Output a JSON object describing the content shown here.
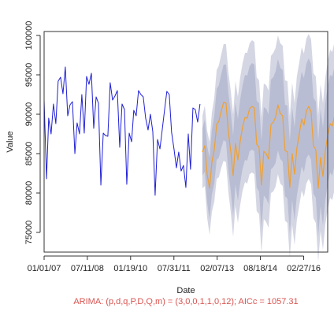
{
  "chart_data": {
    "type": "line",
    "title": "",
    "xlabel": "Date",
    "ylabel": "Value",
    "caption": "ARIMA: (p,d,q,P,D,Q,m) = (3,0,0,1,1,0,12); AICc = 1057.31",
    "x_range": [
      "2007-01-01",
      "2017-01-01"
    ],
    "ylim": [
      72500,
      100500
    ],
    "x_ticks": [
      "01/01/07",
      "07/11/08",
      "01/19/10",
      "07/31/11",
      "02/07/13",
      "08/18/14",
      "02/27/16"
    ],
    "y_ticks": [
      75000,
      80000,
      85000,
      90000,
      95000,
      100000
    ],
    "grid": false,
    "legend": "none",
    "colors": {
      "observed": "#1f1fd6",
      "forecast": "#f0a030",
      "band_outer": "#d4d6e3",
      "band_inner": "#b9bdd3",
      "caption": "#d9534f",
      "axis": "#333333"
    },
    "series": [
      {
        "role": "observed",
        "start": "2007-01",
        "step": "month",
        "values": [
          91800,
          81800,
          89500,
          87500,
          91300,
          88800,
          94200,
          94700,
          92600,
          96000,
          89800,
          91200,
          91600,
          85000,
          88900,
          87500,
          92500,
          87600,
          94800,
          93800,
          95200,
          88200,
          92200,
          91400,
          81000,
          87600,
          87300,
          87200,
          94000,
          91800,
          92300,
          93000,
          85800,
          91300,
          90600,
          81100,
          87600,
          86500,
          90500,
          89800,
          93000,
          92500,
          92200,
          89500,
          88000,
          90000,
          87800,
          79700,
          86800,
          85600,
          87900,
          90500,
          92900,
          92500,
          87700,
          85600,
          83200,
          85200,
          82800,
          83500,
          80700,
          87500,
          83000,
          90800,
          90600,
          89000,
          91300
        ]
      },
      {
        "role": "forecast",
        "start": "2012-08",
        "step": "month",
        "values": [
          85200,
          86000,
          82400,
          80600,
          83900,
          85500,
          88700,
          89100,
          90400,
          91500,
          91400,
          87800,
          85300,
          82200,
          86300,
          84200,
          86600,
          88400,
          89600,
          89500,
          90700,
          91000,
          90800,
          86200,
          85800,
          81000,
          85300,
          85000,
          84300,
          88700,
          89000,
          89600,
          91200,
          90100,
          89800,
          85400,
          85200,
          80700,
          85000,
          82400,
          85700,
          87500,
          89400,
          88600,
          90400,
          91000,
          90300,
          86000,
          85500,
          80600,
          84500,
          82100,
          85300,
          87300,
          88800,
          88500,
          89900,
          91300,
          90600,
          85200
        ],
        "band80_half": [
          3000,
          3300,
          3600,
          3900,
          4100,
          4300,
          4500,
          4600,
          4700,
          4800,
          4900,
          5000,
          5000,
          5100,
          5200,
          5200,
          5300,
          5300,
          5400,
          5400,
          5400,
          5500,
          5500,
          5500,
          5600,
          5600,
          5600,
          5700,
          5700,
          5700,
          5700,
          5800,
          5800,
          5800,
          5800,
          5800,
          5900,
          5900,
          5900,
          5900,
          6000,
          6000,
          6000,
          6000,
          6000,
          6100,
          6100,
          6100,
          6100,
          6100,
          6200,
          6200,
          6200,
          6200,
          6200,
          6300,
          6300,
          6300,
          6300,
          6300
        ],
        "band95_half": [
          4600,
          5100,
          5500,
          5900,
          6300,
          6600,
          6900,
          7100,
          7200,
          7400,
          7500,
          7600,
          7700,
          7800,
          7900,
          8000,
          8100,
          8100,
          8200,
          8300,
          8300,
          8400,
          8400,
          8500,
          8500,
          8600,
          8600,
          8700,
          8700,
          8700,
          8800,
          8800,
          8800,
          8900,
          8900,
          8900,
          9000,
          9000,
          9000,
          9000,
          9100,
          9100,
          9100,
          9100,
          9200,
          9200,
          9200,
          9200,
          9300,
          9300,
          9300,
          9300,
          9300,
          9400,
          9400,
          9400,
          9400,
          9400,
          9500,
          9500
        ]
      }
    ]
  }
}
